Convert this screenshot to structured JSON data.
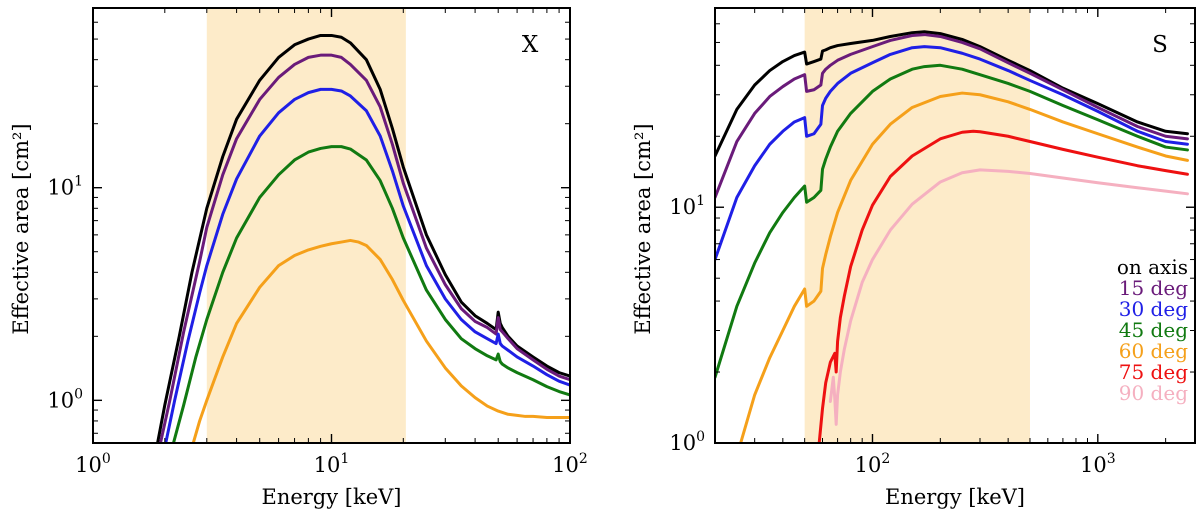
{
  "chart_data": [
    {
      "type": "line",
      "panel_label": "X",
      "xscale": "log",
      "yscale": "log",
      "xlim": [
        1,
        100
      ],
      "ylim": [
        0.63,
        70
      ],
      "xlabel": "Energy [keV]",
      "ylabel": "Effective area [cm²]",
      "xticks": [
        {
          "value": 1,
          "base": "10",
          "exp": "0"
        },
        {
          "value": 10,
          "base": "10",
          "exp": "1"
        },
        {
          "value": 100,
          "base": "10",
          "exp": "2"
        }
      ],
      "yticks": [
        {
          "value": 1,
          "base": "10",
          "exp": "0"
        },
        {
          "value": 10,
          "base": "10",
          "exp": "1"
        }
      ],
      "shaded_band": [
        3,
        20.5
      ],
      "series": [
        {
          "name": "on axis",
          "color": "#000000",
          "x": [
            1.85,
            2.0,
            2.3,
            2.6,
            3.0,
            3.5,
            4.0,
            5.0,
            6.0,
            7.0,
            8.0,
            9.0,
            10.0,
            11.0,
            12.0,
            14.0,
            16.0,
            18.0,
            20.0,
            25.0,
            30.0,
            35.0,
            40.0,
            45.0,
            49.0,
            50.0,
            51.0,
            52.0,
            55.0,
            60.0,
            70.0,
            80.0,
            90.0,
            100.0
          ],
          "y": [
            0.6,
            0.95,
            2.0,
            4.0,
            8.0,
            14.0,
            21.0,
            32.0,
            41.0,
            47.0,
            50.0,
            52.0,
            52.0,
            51.0,
            48.0,
            40.0,
            29.0,
            19.0,
            12.5,
            6.0,
            3.9,
            2.9,
            2.5,
            2.3,
            2.15,
            2.6,
            2.3,
            2.2,
            2.0,
            1.8,
            1.6,
            1.45,
            1.35,
            1.3
          ]
        },
        {
          "name": "15 deg",
          "color": "#6a1b7a",
          "x": [
            1.9,
            2.1,
            2.4,
            2.8,
            3.0,
            3.5,
            4.0,
            5.0,
            6.0,
            7.0,
            8.0,
            9.0,
            10.0,
            11.0,
            12.0,
            14.0,
            16.0,
            18.0,
            20.0,
            25.0,
            30.0,
            35.0,
            40.0,
            45.0,
            49.0,
            50.0,
            51.0,
            52.0,
            55.0,
            60.0,
            70.0,
            80.0,
            90.0,
            100.0
          ],
          "y": [
            0.6,
            1.0,
            2.1,
            4.5,
            6.5,
            11.5,
            17.0,
            26.0,
            33.0,
            38.0,
            41.0,
            42.0,
            42.0,
            41.0,
            38.0,
            32.0,
            24.0,
            16.0,
            10.5,
            5.2,
            3.5,
            2.7,
            2.35,
            2.2,
            2.05,
            2.45,
            2.15,
            2.1,
            1.95,
            1.75,
            1.55,
            1.4,
            1.3,
            1.25
          ]
        },
        {
          "name": "30 deg",
          "color": "#1f1fe6",
          "x": [
            2.0,
            2.2,
            2.5,
            2.8,
            3.0,
            3.5,
            4.0,
            5.0,
            6.0,
            7.0,
            8.0,
            9.0,
            10.0,
            11.0,
            12.0,
            14.0,
            16.0,
            18.0,
            20.0,
            25.0,
            30.0,
            35.0,
            40.0,
            45.0,
            49.0,
            50.0,
            51.0,
            52.0,
            55.0,
            60.0,
            70.0,
            80.0,
            90.0,
            100.0
          ],
          "y": [
            0.6,
            1.0,
            1.9,
            3.2,
            4.3,
            7.5,
            11.0,
            17.5,
            22.5,
            26.0,
            28.0,
            29.0,
            29.0,
            28.5,
            27.0,
            23.0,
            17.5,
            12.0,
            8.2,
            4.3,
            3.0,
            2.4,
            2.1,
            1.95,
            1.85,
            2.05,
            1.85,
            1.8,
            1.72,
            1.6,
            1.45,
            1.32,
            1.23,
            1.18
          ]
        },
        {
          "name": "45 deg",
          "color": "#117a11",
          "x": [
            2.15,
            2.4,
            2.7,
            3.0,
            3.5,
            4.0,
            5.0,
            6.0,
            7.0,
            8.0,
            9.0,
            10.0,
            11.0,
            12.0,
            14.0,
            16.0,
            18.0,
            20.0,
            25.0,
            30.0,
            35.0,
            40.0,
            45.0,
            49.0,
            50.0,
            51.0,
            52.0,
            55.0,
            60.0,
            70.0,
            80.0,
            90.0,
            100.0
          ],
          "y": [
            0.6,
            0.95,
            1.6,
            2.4,
            4.0,
            5.8,
            9.0,
            11.5,
            13.5,
            14.7,
            15.3,
            15.6,
            15.6,
            15.2,
            13.5,
            10.8,
            8.0,
            5.8,
            3.3,
            2.4,
            1.95,
            1.75,
            1.62,
            1.55,
            1.65,
            1.52,
            1.48,
            1.42,
            1.35,
            1.25,
            1.16,
            1.1,
            1.06
          ]
        },
        {
          "name": "60 deg",
          "color": "#f5a01a",
          "x": [
            2.6,
            2.8,
            3.0,
            3.5,
            4.0,
            5.0,
            6.0,
            7.0,
            8.0,
            9.0,
            10.0,
            11.0,
            12.0,
            13.0,
            14.0,
            16.0,
            18.0,
            20.0,
            25.0,
            30.0,
            35.0,
            40.0,
            45.0,
            50.0,
            55.0,
            60.0,
            65.0,
            70.0,
            80.0,
            90.0,
            100.0
          ],
          "y": [
            0.6,
            0.8,
            1.0,
            1.6,
            2.3,
            3.4,
            4.3,
            4.8,
            5.1,
            5.3,
            5.45,
            5.55,
            5.65,
            5.55,
            5.35,
            4.6,
            3.7,
            2.95,
            1.9,
            1.42,
            1.17,
            1.03,
            0.94,
            0.89,
            0.86,
            0.85,
            0.84,
            0.84,
            0.83,
            0.83,
            0.83
          ]
        }
      ]
    },
    {
      "type": "line",
      "panel_label": "S",
      "xscale": "log",
      "yscale": "log",
      "xlim": [
        20,
        2700
      ],
      "ylim": [
        1,
        70
      ],
      "xlabel": "Energy [keV]",
      "ylabel": "Effective area [cm²]",
      "xticks": [
        {
          "value": 100,
          "base": "10",
          "exp": "2"
        },
        {
          "value": 1000,
          "base": "10",
          "exp": "3"
        }
      ],
      "yticks": [
        {
          "value": 1,
          "base": "10",
          "exp": "0"
        },
        {
          "value": 10,
          "base": "10",
          "exp": "1"
        }
      ],
      "shaded_band": [
        50,
        500
      ],
      "legend_position": "lower-right",
      "series": [
        {
          "name": "on axis",
          "color": "#000000",
          "x": [
            20,
            25,
            30,
            35,
            40,
            45,
            50,
            51,
            55,
            59,
            60,
            62,
            65,
            70,
            80,
            100,
            120,
            150,
            170,
            200,
            250,
            300,
            400,
            500,
            700,
            1000,
            1500,
            2000,
            2500
          ],
          "y": [
            16.5,
            26,
            33,
            38,
            41.5,
            44,
            45.5,
            40.5,
            41.5,
            42.5,
            46,
            46.5,
            47.5,
            48.5,
            49.5,
            51,
            53,
            55,
            55.5,
            54.5,
            51.5,
            48,
            42,
            38,
            32,
            27.5,
            23,
            21,
            20.5
          ]
        },
        {
          "name": "15 deg",
          "color": "#6a1b7a",
          "x": [
            20,
            25,
            30,
            35,
            40,
            45,
            50,
            51,
            55,
            59,
            60,
            62,
            65,
            70,
            80,
            100,
            120,
            150,
            170,
            200,
            250,
            300,
            400,
            500,
            700,
            1000,
            1500,
            2000,
            2500
          ],
          "y": [
            11,
            19,
            25,
            29.5,
            32.5,
            35,
            36.5,
            31,
            31.5,
            33,
            37,
            38.5,
            40,
            42,
            44.5,
            48,
            51,
            53.5,
            54,
            53,
            50,
            47,
            41,
            37,
            31.5,
            26.5,
            22,
            20,
            19.5
          ]
        },
        {
          "name": "30 deg",
          "color": "#1f1fe6",
          "x": [
            20,
            25,
            30,
            35,
            40,
            45,
            50,
            51,
            55,
            59,
            60,
            62,
            65,
            70,
            80,
            100,
            120,
            150,
            170,
            200,
            250,
            300,
            400,
            500,
            700,
            1000,
            1500,
            2000,
            2500
          ],
          "y": [
            6,
            11,
            15,
            18.5,
            21,
            23,
            24,
            20,
            20.5,
            22.5,
            27,
            29,
            31,
            33.5,
            37,
            41,
            44.5,
            47.5,
            48,
            47.5,
            45,
            42.5,
            38,
            34.5,
            30,
            25.5,
            21,
            19,
            18.5
          ]
        },
        {
          "name": "45 deg",
          "color": "#117a11",
          "x": [
            20,
            25,
            30,
            35,
            40,
            45,
            50,
            51,
            55,
            59,
            60,
            62,
            65,
            70,
            80,
            100,
            120,
            150,
            170,
            200,
            250,
            300,
            400,
            500,
            700,
            1000,
            1500,
            2000,
            2500
          ],
          "y": [
            1.9,
            3.8,
            5.8,
            7.8,
            9.5,
            11,
            12.3,
            10.5,
            11,
            11.8,
            14.5,
            16,
            18,
            21,
            25,
            31,
            35,
            38.5,
            39.5,
            40,
            38.5,
            36.5,
            33.5,
            31,
            27,
            23.5,
            20,
            18,
            17.5
          ]
        },
        {
          "name": "60 deg",
          "color": "#f5a01a",
          "x": [
            26,
            30,
            35,
            40,
            45,
            50,
            51,
            55,
            59,
            60,
            62,
            65,
            70,
            80,
            100,
            120,
            150,
            200,
            250,
            300,
            400,
            500,
            700,
            1000,
            1500,
            2000,
            2500
          ],
          "y": [
            1.0,
            1.6,
            2.3,
            3.0,
            3.8,
            4.5,
            3.8,
            4.0,
            4.4,
            5.5,
            6.3,
            7.5,
            9.5,
            13,
            18.5,
            22.5,
            26.5,
            29.5,
            30.5,
            30,
            28,
            26,
            23,
            20.5,
            18,
            16.5,
            15.8
          ]
        },
        {
          "name": "75 deg",
          "color": "#ee1111",
          "x": [
            58,
            60,
            62,
            65,
            68,
            69,
            70,
            72,
            75,
            80,
            90,
            100,
            120,
            150,
            200,
            250,
            280,
            300,
            400,
            500,
            700,
            1000,
            1500,
            2000,
            2500
          ],
          "y": [
            1.0,
            1.4,
            1.8,
            2.2,
            2.4,
            2.0,
            2.7,
            3.4,
            4.2,
            5.6,
            8.0,
            10.2,
            13.5,
            16.5,
            19.5,
            20.8,
            21,
            20.9,
            20,
            19,
            17.6,
            16.3,
            15,
            14.3,
            13.8
          ]
        },
        {
          "name": "90 deg",
          "color": "#f5b0c0",
          "x": [
            65,
            67,
            68,
            69,
            70,
            72,
            75,
            80,
            90,
            100,
            120,
            150,
            200,
            250,
            300,
            400,
            500,
            700,
            1000,
            1500,
            2000,
            2500
          ],
          "y": [
            1.5,
            1.9,
            1.55,
            1.2,
            1.6,
            2.0,
            2.5,
            3.3,
            4.8,
            6.0,
            8.0,
            10.3,
            12.8,
            14.0,
            14.4,
            14.2,
            13.9,
            13.3,
            12.7,
            12.1,
            11.7,
            11.4
          ]
        }
      ]
    }
  ]
}
